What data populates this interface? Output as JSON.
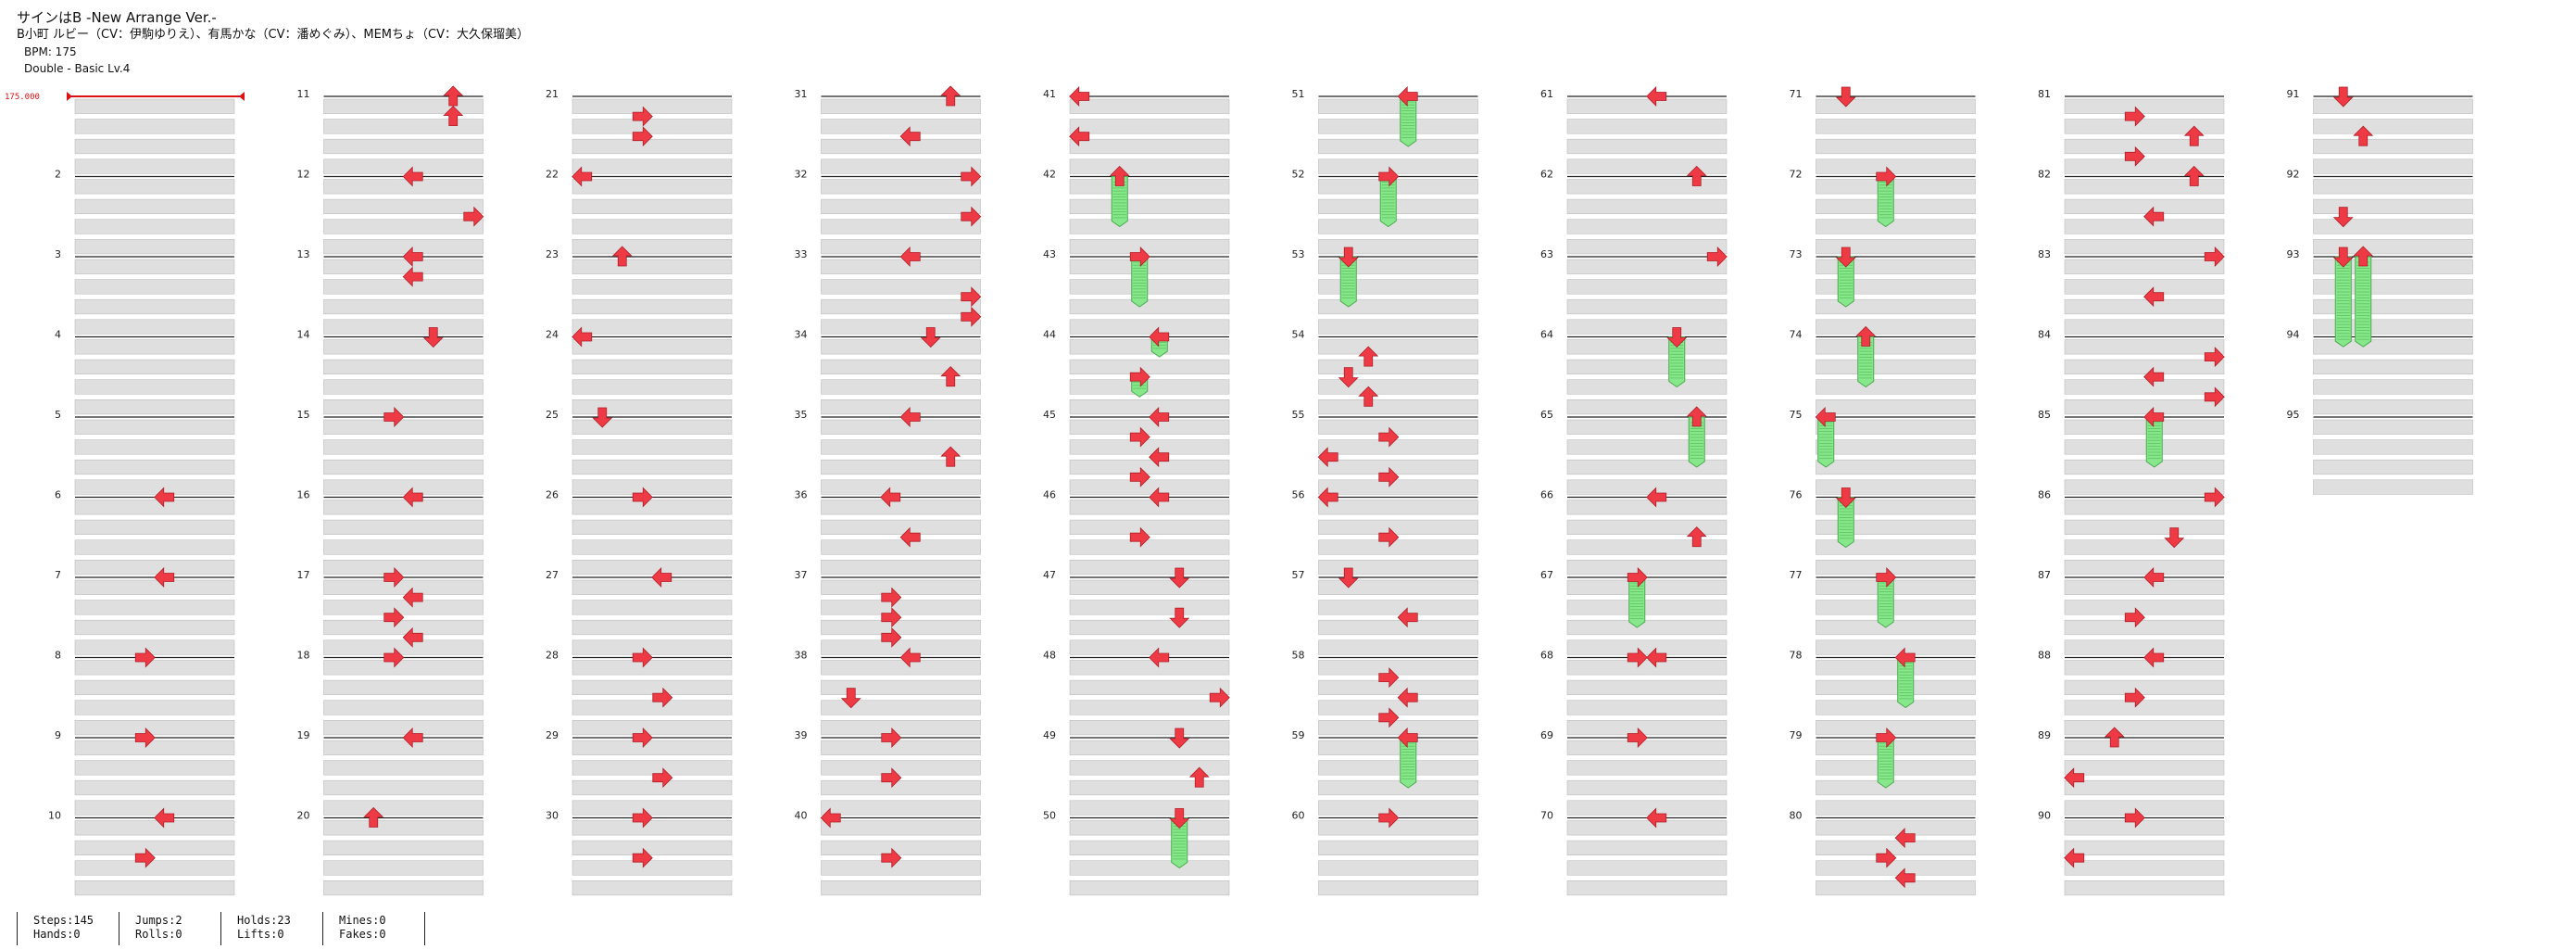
{
  "header": {
    "title": "サインはB -New Arrange Ver.-",
    "artist": "B小町 ルビー（CV：伊駒ゆりえ）、有馬かな（CV：潘めぐみ）、MEMちょ（CV：大久保瑠美）",
    "bpm": "BPM: 175",
    "difficulty": "Double - Basic Lv.4"
  },
  "bpm_marker": {
    "label": "175.000"
  },
  "stats": {
    "steps": "Steps:145",
    "hands": "Hands:0",
    "jumps": "Jumps:2",
    "rolls": "Rolls:0",
    "holds": "Holds:23",
    "lifts": "Lifts:0",
    "mines": "Mines:0",
    "fakes": "Fakes:0"
  },
  "colors": {
    "arrow": "#ee3a44",
    "hold": "#86e88a",
    "row_stripe": "#dfdfdf",
    "measure_line": "#222222",
    "bpm": "#dd1111"
  },
  "chart_data": {
    "type": "table",
    "measure_count": 95,
    "rows_per_measure": 4,
    "lane_count": 8,
    "lane_order": [
      "left",
      "down",
      "up",
      "right",
      "left",
      "down",
      "up",
      "right"
    ],
    "notes": [
      {
        "measure": 6,
        "beat": 0,
        "lane": 4,
        "dir": "left"
      },
      {
        "measure": 7,
        "beat": 0,
        "lane": 4,
        "dir": "left"
      },
      {
        "measure": 8,
        "beat": 0,
        "lane": 3,
        "dir": "right"
      },
      {
        "measure": 9,
        "beat": 0,
        "lane": 3,
        "dir": "right"
      },
      {
        "measure": 10,
        "beat": 0,
        "lane": 4,
        "dir": "left"
      },
      {
        "measure": 10,
        "beat": 1,
        "lane": 3,
        "dir": "right"
      },
      {
        "measure": 11,
        "beat": 0,
        "lane": 6,
        "dir": "up"
      },
      {
        "measure": 11,
        "beat": 0.5,
        "lane": 6,
        "dir": "up"
      },
      {
        "measure": 12,
        "beat": 0,
        "lane": 4,
        "dir": "left"
      },
      {
        "measure": 12,
        "beat": 1,
        "lane": 7,
        "dir": "right"
      },
      {
        "measure": 13,
        "beat": 0,
        "lane": 4,
        "dir": "left"
      },
      {
        "measure": 13,
        "beat": 0.5,
        "lane": 4,
        "dir": "left"
      },
      {
        "measure": 14,
        "beat": 0,
        "lane": 5,
        "dir": "down"
      },
      {
        "measure": 15,
        "beat": 0,
        "lane": 3,
        "dir": "right"
      },
      {
        "measure": 16,
        "beat": 0,
        "lane": 4,
        "dir": "left"
      },
      {
        "measure": 17,
        "beat": 0,
        "lane": 3,
        "dir": "right"
      },
      {
        "measure": 17,
        "beat": 0.5,
        "lane": 4,
        "dir": "left"
      },
      {
        "measure": 17,
        "beat": 1,
        "lane": 3,
        "dir": "right"
      },
      {
        "measure": 17,
        "beat": 1.5,
        "lane": 4,
        "dir": "left"
      },
      {
        "measure": 18,
        "beat": 0,
        "lane": 3,
        "dir": "right"
      },
      {
        "measure": 19,
        "beat": 0,
        "lane": 4,
        "dir": "left"
      },
      {
        "measure": 20,
        "beat": 0,
        "lane": 2,
        "dir": "up"
      },
      {
        "measure": 21,
        "beat": 0.5,
        "lane": 3,
        "dir": "right"
      },
      {
        "measure": 21,
        "beat": 1,
        "lane": 3,
        "dir": "right"
      },
      {
        "measure": 22,
        "beat": 0,
        "lane": 0,
        "dir": "left"
      },
      {
        "measure": 23,
        "beat": 0,
        "lane": 2,
        "dir": "up"
      },
      {
        "measure": 24,
        "beat": 0,
        "lane": 0,
        "dir": "left"
      },
      {
        "measure": 25,
        "beat": 0,
        "lane": 1,
        "dir": "down"
      },
      {
        "measure": 26,
        "beat": 0,
        "lane": 3,
        "dir": "right"
      },
      {
        "measure": 27,
        "beat": 0,
        "lane": 4,
        "dir": "left"
      },
      {
        "measure": 28,
        "beat": 0,
        "lane": 3,
        "dir": "right"
      },
      {
        "measure": 28,
        "beat": 1,
        "lane": 4,
        "dir": "right"
      },
      {
        "measure": 29,
        "beat": 0,
        "lane": 3,
        "dir": "right"
      },
      {
        "measure": 29,
        "beat": 1,
        "lane": 4,
        "dir": "right"
      },
      {
        "measure": 30,
        "beat": 0,
        "lane": 3,
        "dir": "right"
      },
      {
        "measure": 30,
        "beat": 1,
        "lane": 3,
        "dir": "right"
      },
      {
        "measure": 31,
        "beat": 0,
        "lane": 6,
        "dir": "up"
      },
      {
        "measure": 31,
        "beat": 1,
        "lane": 4,
        "dir": "left"
      },
      {
        "measure": 32,
        "beat": 0,
        "lane": 7,
        "dir": "right"
      },
      {
        "measure": 32,
        "beat": 1,
        "lane": 7,
        "dir": "right"
      },
      {
        "measure": 33,
        "beat": 0,
        "lane": 4,
        "dir": "left"
      },
      {
        "measure": 33,
        "beat": 1,
        "lane": 7,
        "dir": "right"
      },
      {
        "measure": 33,
        "beat": 1.5,
        "lane": 7,
        "dir": "right"
      },
      {
        "measure": 34,
        "beat": 0,
        "lane": 5,
        "dir": "down"
      },
      {
        "measure": 34,
        "beat": 1,
        "lane": 6,
        "dir": "up"
      },
      {
        "measure": 35,
        "beat": 0,
        "lane": 4,
        "dir": "left"
      },
      {
        "measure": 35,
        "beat": 1,
        "lane": 6,
        "dir": "up"
      },
      {
        "measure": 36,
        "beat": 0,
        "lane": 3,
        "dir": "left"
      },
      {
        "measure": 36,
        "beat": 1,
        "lane": 4,
        "dir": "left"
      },
      {
        "measure": 37,
        "beat": 0.5,
        "lane": 3,
        "dir": "right"
      },
      {
        "measure": 37,
        "beat": 1,
        "lane": 3,
        "dir": "right"
      },
      {
        "measure": 37,
        "beat": 1.5,
        "lane": 3,
        "dir": "right"
      },
      {
        "measure": 38,
        "beat": 0,
        "lane": 4,
        "dir": "left"
      },
      {
        "measure": 38,
        "beat": 1,
        "lane": 1,
        "dir": "down"
      },
      {
        "measure": 39,
        "beat": 0,
        "lane": 3,
        "dir": "right"
      },
      {
        "measure": 39,
        "beat": 1,
        "lane": 3,
        "dir": "right"
      },
      {
        "measure": 40,
        "beat": 0,
        "lane": 0,
        "dir": "left"
      },
      {
        "measure": 40,
        "beat": 1,
        "lane": 3,
        "dir": "right"
      },
      {
        "measure": 41,
        "beat": 0,
        "lane": 0,
        "dir": "left"
      },
      {
        "measure": 41,
        "beat": 1,
        "lane": 0,
        "dir": "left"
      },
      {
        "measure": 42,
        "beat": 0,
        "lane": 2,
        "dir": "up",
        "hold": 1.25
      },
      {
        "measure": 43,
        "beat": 0,
        "lane": 3,
        "dir": "right",
        "hold": 1.25
      },
      {
        "measure": 44,
        "beat": 0,
        "lane": 4,
        "dir": "left",
        "hold": 0.5
      },
      {
        "measure": 44,
        "beat": 1,
        "lane": 3,
        "dir": "right",
        "hold": 0.5
      },
      {
        "measure": 45,
        "beat": 0,
        "lane": 4,
        "dir": "left"
      },
      {
        "measure": 45,
        "beat": 0.5,
        "lane": 3,
        "dir": "right"
      },
      {
        "measure": 45,
        "beat": 1,
        "lane": 4,
        "dir": "left"
      },
      {
        "measure": 45,
        "beat": 1.5,
        "lane": 3,
        "dir": "right"
      },
      {
        "measure": 46,
        "beat": 0,
        "lane": 4,
        "dir": "left"
      },
      {
        "measure": 46,
        "beat": 1,
        "lane": 3,
        "dir": "right"
      },
      {
        "measure": 47,
        "beat": 0,
        "lane": 5,
        "dir": "down"
      },
      {
        "measure": 47,
        "beat": 1,
        "lane": 5,
        "dir": "down"
      },
      {
        "measure": 48,
        "beat": 0,
        "lane": 4,
        "dir": "left"
      },
      {
        "measure": 48,
        "beat": 1,
        "lane": 7,
        "dir": "right"
      },
      {
        "measure": 49,
        "beat": 0,
        "lane": 5,
        "dir": "down"
      },
      {
        "measure": 49,
        "beat": 1,
        "lane": 6,
        "dir": "up"
      },
      {
        "measure": 50,
        "beat": 0,
        "lane": 5,
        "dir": "down",
        "hold": 1.25
      },
      {
        "measure": 51,
        "beat": 0,
        "lane": 4,
        "dir": "left",
        "hold": 1.25
      },
      {
        "measure": 52,
        "beat": 0,
        "lane": 3,
        "dir": "right",
        "hold": 1.25
      },
      {
        "measure": 53,
        "beat": 0,
        "lane": 1,
        "dir": "down",
        "hold": 1.25
      },
      {
        "measure": 54,
        "beat": 0.5,
        "lane": 2,
        "dir": "up"
      },
      {
        "measure": 54,
        "beat": 1,
        "lane": 1,
        "dir": "down"
      },
      {
        "measure": 54,
        "beat": 1.5,
        "lane": 2,
        "dir": "up"
      },
      {
        "measure": 55,
        "beat": 0.5,
        "lane": 3,
        "dir": "right"
      },
      {
        "measure": 55,
        "beat": 1,
        "lane": 0,
        "dir": "left"
      },
      {
        "measure": 55,
        "beat": 1.5,
        "lane": 3,
        "dir": "right"
      },
      {
        "measure": 56,
        "beat": 0,
        "lane": 0,
        "dir": "left"
      },
      {
        "measure": 56,
        "beat": 1,
        "lane": 3,
        "dir": "right"
      },
      {
        "measure": 57,
        "beat": 0,
        "lane": 1,
        "dir": "down"
      },
      {
        "measure": 57,
        "beat": 1,
        "lane": 4,
        "dir": "left"
      },
      {
        "measure": 58,
        "beat": 0.5,
        "lane": 3,
        "dir": "right"
      },
      {
        "measure": 58,
        "beat": 1,
        "lane": 4,
        "dir": "left"
      },
      {
        "measure": 58,
        "beat": 1.5,
        "lane": 3,
        "dir": "right"
      },
      {
        "measure": 59,
        "beat": 0,
        "lane": 4,
        "dir": "left",
        "hold": 1.25
      },
      {
        "measure": 60,
        "beat": 0,
        "lane": 3,
        "dir": "right"
      },
      {
        "measure": 61,
        "beat": 0,
        "lane": 4,
        "dir": "left"
      },
      {
        "measure": 62,
        "beat": 0,
        "lane": 6,
        "dir": "up"
      },
      {
        "measure": 63,
        "beat": 0,
        "lane": 7,
        "dir": "right"
      },
      {
        "measure": 64,
        "beat": 0,
        "lane": 5,
        "dir": "down",
        "hold": 1.25
      },
      {
        "measure": 65,
        "beat": 0,
        "lane": 6,
        "dir": "up",
        "hold": 1.25
      },
      {
        "measure": 66,
        "beat": 0,
        "lane": 4,
        "dir": "left"
      },
      {
        "measure": 66,
        "beat": 1,
        "lane": 6,
        "dir": "up"
      },
      {
        "measure": 67,
        "beat": 0,
        "lane": 3,
        "dir": "right",
        "hold": 1.25
      },
      {
        "measure": 68,
        "beat": 0,
        "lane": 3,
        "dir": "right"
      },
      {
        "measure": 68,
        "beat": 0,
        "lane": 4,
        "dir": "left"
      },
      {
        "measure": 69,
        "beat": 0,
        "lane": 3,
        "dir": "right"
      },
      {
        "measure": 70,
        "beat": 0,
        "lane": 4,
        "dir": "left"
      },
      {
        "measure": 71,
        "beat": 0,
        "lane": 1,
        "dir": "down"
      },
      {
        "measure": 72,
        "beat": 0,
        "lane": 3,
        "dir": "right",
        "hold": 1.25
      },
      {
        "measure": 73,
        "beat": 0,
        "lane": 1,
        "dir": "down",
        "hold": 1.25
      },
      {
        "measure": 74,
        "beat": 0,
        "lane": 2,
        "dir": "up",
        "hold": 1.25
      },
      {
        "measure": 75,
        "beat": 0,
        "lane": 0,
        "dir": "left",
        "hold": 1.25
      },
      {
        "measure": 76,
        "beat": 0,
        "lane": 1,
        "dir": "down",
        "hold": 1.25
      },
      {
        "measure": 77,
        "beat": 0,
        "lane": 3,
        "dir": "right",
        "hold": 1.25
      },
      {
        "measure": 78,
        "beat": 0,
        "lane": 4,
        "dir": "left",
        "hold": 1.25
      },
      {
        "measure": 79,
        "beat": 0,
        "lane": 3,
        "dir": "right",
        "hold": 1.25
      },
      {
        "measure": 80,
        "beat": 0.5,
        "lane": 4,
        "dir": "left"
      },
      {
        "measure": 80,
        "beat": 1,
        "lane": 3,
        "dir": "right"
      },
      {
        "measure": 80,
        "beat": 1.5,
        "lane": 4,
        "dir": "left"
      },
      {
        "measure": 81,
        "beat": 0.5,
        "lane": 3,
        "dir": "right"
      },
      {
        "measure": 81,
        "beat": 1,
        "lane": 6,
        "dir": "up"
      },
      {
        "measure": 81,
        "beat": 1.5,
        "lane": 3,
        "dir": "right"
      },
      {
        "measure": 82,
        "beat": 0,
        "lane": 6,
        "dir": "up"
      },
      {
        "measure": 82,
        "beat": 1,
        "lane": 4,
        "dir": "left"
      },
      {
        "measure": 83,
        "beat": 0,
        "lane": 7,
        "dir": "right"
      },
      {
        "measure": 83,
        "beat": 1,
        "lane": 4,
        "dir": "left"
      },
      {
        "measure": 84,
        "beat": 0.5,
        "lane": 7,
        "dir": "right"
      },
      {
        "measure": 84,
        "beat": 1,
        "lane": 4,
        "dir": "left"
      },
      {
        "measure": 84,
        "beat": 1.5,
        "lane": 7,
        "dir": "right"
      },
      {
        "measure": 85,
        "beat": 0,
        "lane": 4,
        "dir": "left",
        "hold": 1.25
      },
      {
        "measure": 86,
        "beat": 0,
        "lane": 7,
        "dir": "right"
      },
      {
        "measure": 86,
        "beat": 1,
        "lane": 5,
        "dir": "down"
      },
      {
        "measure": 87,
        "beat": 0,
        "lane": 4,
        "dir": "left"
      },
      {
        "measure": 87,
        "beat": 1,
        "lane": 3,
        "dir": "right"
      },
      {
        "measure": 88,
        "beat": 0,
        "lane": 4,
        "dir": "left"
      },
      {
        "measure": 88,
        "beat": 1,
        "lane": 3,
        "dir": "right"
      },
      {
        "measure": 89,
        "beat": 0,
        "lane": 2,
        "dir": "up"
      },
      {
        "measure": 89,
        "beat": 1,
        "lane": 0,
        "dir": "left"
      },
      {
        "measure": 90,
        "beat": 0,
        "lane": 3,
        "dir": "right"
      },
      {
        "measure": 90,
        "beat": 1,
        "lane": 0,
        "dir": "left"
      },
      {
        "measure": 91,
        "beat": 0,
        "lane": 1,
        "dir": "down"
      },
      {
        "measure": 91,
        "beat": 1,
        "lane": 2,
        "dir": "up"
      },
      {
        "measure": 92,
        "beat": 1,
        "lane": 1,
        "dir": "down"
      },
      {
        "measure": 93,
        "beat": 0,
        "lane": 1,
        "dir": "down",
        "hold": 2.25
      },
      {
        "measure": 93,
        "beat": 0,
        "lane": 2,
        "dir": "up",
        "hold": 2.25
      }
    ]
  }
}
